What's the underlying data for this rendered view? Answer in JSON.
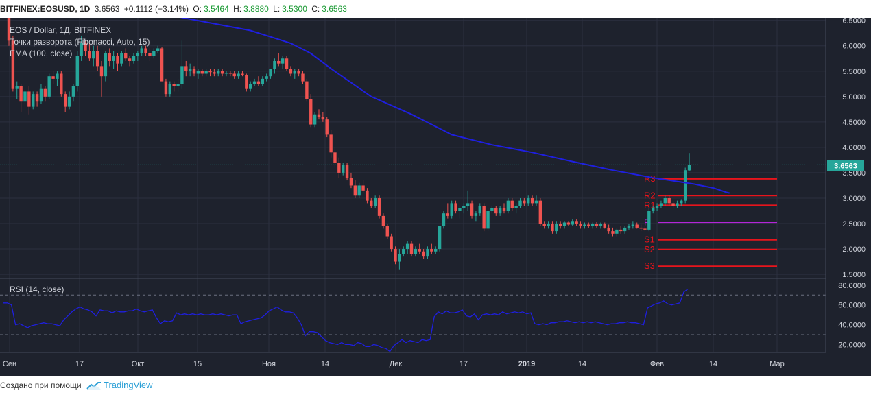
{
  "header": {
    "symbol": "BITFINEX:EOSUSD, 1D",
    "last": "3.6563",
    "change": "+0.1112 (+3.14%)",
    "o_label": "O:",
    "o": "3.5464",
    "h_label": "H:",
    "h": "3.8880",
    "l_label": "L:",
    "l": "3.5300",
    "c_label": "C:",
    "c": "3.6563"
  },
  "legend": {
    "line1": "EOS / Dollar, 1Д, BITFINEX",
    "line2": "Точки разворота (Fibonacci, Auto, 15)",
    "line3": "EMA (100, close)",
    "rsi": "RSI (14, close)"
  },
  "price_label": "3.6563",
  "footer": {
    "made_with": "Создано при помощи",
    "brand": "TradingView"
  },
  "colors": {
    "up": "#26a69a",
    "down": "#ef5350",
    "ema": "#1f1fe0",
    "pivot_r": "#e8141c",
    "pivot_p": "#b425d8",
    "rsi": "#1f1fe0",
    "bg": "#1e222d",
    "grid": "#2c3040",
    "last_line": "#26a69a"
  },
  "chart_data": [
    {
      "type": "candlestick",
      "title": "EOS / Dollar, 1Д, BITFINEX",
      "x_ticks": [
        "Сен",
        "17",
        "Окт",
        "15",
        "Ноя",
        "14",
        "Дек",
        "17",
        "2019",
        "14",
        "Фев",
        "14",
        "Мар"
      ],
      "y_ticks": [
        "1.5000",
        "2.0000",
        "2.5000",
        "3.0000",
        "3.5000",
        "4.0000",
        "4.5000",
        "5.0000",
        "5.5000",
        "6.0000",
        "6.5000"
      ],
      "ylim": [
        1.5,
        6.5
      ],
      "candles": [
        [
          6.6,
          6.62,
          6.0,
          6.1
        ],
        [
          6.1,
          6.2,
          5.1,
          5.15
        ],
        [
          5.15,
          5.3,
          4.95,
          5.2
        ],
        [
          5.2,
          5.25,
          4.7,
          4.9
        ],
        [
          4.9,
          5.15,
          4.85,
          5.1
        ],
        [
          5.1,
          5.2,
          4.65,
          4.8
        ],
        [
          4.8,
          5.1,
          4.75,
          5.05
        ],
        [
          5.05,
          5.1,
          4.8,
          4.9
        ],
        [
          4.9,
          5.25,
          4.85,
          5.15
        ],
        [
          5.15,
          5.2,
          4.9,
          5.0
        ],
        [
          5.0,
          5.45,
          4.95,
          5.4
        ],
        [
          5.4,
          5.5,
          5.25,
          5.35
        ],
        [
          5.35,
          5.5,
          5.2,
          5.45
        ],
        [
          5.45,
          5.5,
          5.0,
          5.05
        ],
        [
          5.05,
          5.1,
          4.7,
          4.8
        ],
        [
          4.8,
          5.1,
          4.75,
          5.0
        ],
        [
          5.0,
          5.25,
          4.9,
          5.2
        ],
        [
          5.2,
          5.9,
          5.1,
          5.8
        ],
        [
          5.8,
          6.2,
          5.7,
          6.05
        ],
        [
          6.05,
          6.1,
          5.8,
          5.9
        ],
        [
          5.9,
          6.05,
          5.7,
          5.75
        ],
        [
          5.75,
          6.0,
          5.6,
          5.9
        ],
        [
          5.9,
          6.0,
          5.5,
          5.6
        ],
        [
          5.6,
          5.7,
          5.0,
          5.4
        ],
        [
          5.4,
          5.9,
          5.3,
          5.85
        ],
        [
          5.85,
          5.95,
          5.6,
          5.7
        ],
        [
          5.7,
          5.9,
          5.55,
          5.8
        ],
        [
          5.8,
          5.85,
          5.5,
          5.65
        ],
        [
          5.65,
          5.9,
          5.6,
          5.85
        ],
        [
          5.85,
          5.95,
          5.7,
          5.75
        ],
        [
          5.75,
          5.8,
          5.6,
          5.7
        ],
        [
          5.7,
          5.85,
          5.65,
          5.8
        ],
        [
          5.8,
          5.9,
          5.7,
          5.85
        ],
        [
          5.85,
          6.0,
          5.8,
          5.95
        ],
        [
          5.95,
          6.0,
          5.8,
          5.85
        ],
        [
          5.85,
          5.95,
          5.7,
          5.8
        ],
        [
          5.8,
          5.95,
          5.75,
          5.9
        ],
        [
          5.9,
          6.0,
          5.85,
          5.95
        ],
        [
          5.95,
          5.98,
          5.3,
          5.3
        ],
        [
          5.3,
          5.35,
          5.0,
          5.05
        ],
        [
          5.05,
          5.3,
          5.0,
          5.25
        ],
        [
          5.25,
          5.3,
          5.1,
          5.2
        ],
        [
          5.2,
          5.35,
          5.1,
          5.25
        ],
        [
          5.25,
          6.1,
          5.15,
          5.6
        ],
        [
          5.6,
          5.7,
          5.4,
          5.5
        ],
        [
          5.5,
          5.65,
          5.4,
          5.55
        ],
        [
          5.55,
          5.6,
          5.4,
          5.45
        ],
        [
          5.45,
          5.55,
          5.35,
          5.5
        ],
        [
          5.5,
          5.55,
          5.4,
          5.45
        ],
        [
          5.45,
          5.55,
          5.4,
          5.5
        ],
        [
          5.5,
          5.55,
          5.4,
          5.48
        ],
        [
          5.48,
          5.55,
          5.4,
          5.45
        ],
        [
          5.45,
          5.55,
          5.4,
          5.5
        ],
        [
          5.5,
          5.55,
          5.4,
          5.45
        ],
        [
          5.45,
          5.5,
          5.4,
          5.47
        ],
        [
          5.47,
          5.5,
          5.4,
          5.45
        ],
        [
          5.45,
          5.5,
          5.35,
          5.4
        ],
        [
          5.4,
          5.5,
          5.35,
          5.45
        ],
        [
          5.45,
          5.5,
          5.4,
          5.42
        ],
        [
          5.42,
          5.45,
          5.1,
          5.15
        ],
        [
          5.15,
          5.3,
          5.1,
          5.25
        ],
        [
          5.25,
          5.35,
          5.2,
          5.3
        ],
        [
          5.3,
          5.4,
          5.2,
          5.25
        ],
        [
          5.25,
          5.4,
          5.2,
          5.35
        ],
        [
          5.35,
          5.45,
          5.3,
          5.4
        ],
        [
          5.4,
          5.55,
          5.35,
          5.55
        ],
        [
          5.55,
          5.75,
          5.45,
          5.7
        ],
        [
          5.7,
          5.85,
          5.6,
          5.65
        ],
        [
          5.65,
          5.8,
          5.55,
          5.75
        ],
        [
          5.75,
          5.8,
          5.5,
          5.55
        ],
        [
          5.55,
          5.6,
          5.4,
          5.45
        ],
        [
          5.45,
          5.55,
          5.35,
          5.5
        ],
        [
          5.5,
          5.55,
          5.4,
          5.45
        ],
        [
          5.45,
          5.5,
          5.25,
          5.3
        ],
        [
          5.3,
          5.35,
          4.9,
          4.95
        ],
        [
          4.95,
          5.05,
          4.4,
          4.45
        ],
        [
          4.45,
          4.7,
          4.4,
          4.65
        ],
        [
          4.65,
          4.75,
          4.55,
          4.6
        ],
        [
          4.6,
          4.7,
          4.5,
          4.55
        ],
        [
          4.55,
          4.6,
          4.2,
          4.25
        ],
        [
          4.25,
          4.35,
          3.8,
          3.9
        ],
        [
          3.9,
          4.0,
          3.6,
          3.7
        ],
        [
          3.7,
          3.8,
          3.4,
          3.5
        ],
        [
          3.5,
          3.7,
          3.45,
          3.65
        ],
        [
          3.65,
          3.7,
          3.35,
          3.4
        ],
        [
          3.4,
          3.5,
          3.2,
          3.25
        ],
        [
          3.25,
          3.35,
          3.0,
          3.05
        ],
        [
          3.05,
          3.3,
          3.0,
          3.25
        ],
        [
          3.25,
          3.35,
          3.1,
          3.15
        ],
        [
          3.15,
          3.2,
          2.9,
          2.95
        ],
        [
          2.95,
          3.0,
          2.8,
          2.85
        ],
        [
          2.85,
          3.05,
          2.8,
          3.0
        ],
        [
          3.0,
          3.05,
          2.6,
          2.65
        ],
        [
          2.65,
          2.7,
          2.4,
          2.45
        ],
        [
          2.45,
          2.5,
          2.2,
          2.25
        ],
        [
          2.25,
          2.3,
          1.95,
          2.0
        ],
        [
          2.0,
          2.05,
          1.7,
          1.75
        ],
        [
          1.75,
          2.0,
          1.6,
          1.9
        ],
        [
          1.9,
          2.05,
          1.85,
          2.0
        ],
        [
          2.0,
          2.15,
          1.9,
          2.1
        ],
        [
          2.1,
          2.15,
          1.85,
          1.9
        ],
        [
          1.9,
          2.05,
          1.85,
          2.0
        ],
        [
          2.0,
          2.1,
          1.9,
          1.95
        ],
        [
          1.95,
          2.0,
          1.8,
          1.85
        ],
        [
          1.85,
          2.05,
          1.8,
          2.0
        ],
        [
          2.0,
          2.1,
          1.9,
          1.95
        ],
        [
          1.95,
          2.05,
          1.9,
          2.0
        ],
        [
          2.0,
          2.45,
          1.95,
          2.45
        ],
        [
          2.45,
          2.75,
          2.4,
          2.7
        ],
        [
          2.7,
          2.9,
          2.6,
          2.65
        ],
        [
          2.65,
          2.95,
          2.6,
          2.9
        ],
        [
          2.9,
          2.95,
          2.7,
          2.75
        ],
        [
          2.75,
          2.85,
          2.6,
          2.8
        ],
        [
          2.8,
          2.9,
          2.7,
          2.85
        ],
        [
          2.85,
          3.15,
          2.75,
          2.9
        ],
        [
          2.9,
          2.95,
          2.6,
          2.65
        ],
        [
          2.65,
          2.75,
          2.55,
          2.7
        ],
        [
          2.7,
          2.9,
          2.65,
          2.85
        ],
        [
          2.85,
          2.9,
          2.35,
          2.4
        ],
        [
          2.4,
          2.8,
          2.35,
          2.75
        ],
        [
          2.75,
          2.85,
          2.7,
          2.8
        ],
        [
          2.8,
          2.85,
          2.65,
          2.7
        ],
        [
          2.7,
          2.85,
          2.65,
          2.8
        ],
        [
          2.8,
          2.9,
          2.7,
          2.75
        ],
        [
          2.75,
          3.0,
          2.7,
          2.95
        ],
        [
          2.95,
          3.0,
          2.75,
          2.8
        ],
        [
          2.8,
          2.9,
          2.7,
          2.85
        ],
        [
          2.85,
          3.0,
          2.8,
          2.95
        ],
        [
          2.95,
          3.0,
          2.85,
          2.9
        ],
        [
          2.9,
          3.05,
          2.85,
          3.0
        ],
        [
          3.0,
          3.05,
          2.85,
          2.9
        ],
        [
          2.9,
          3.05,
          2.85,
          2.95
        ],
        [
          2.95,
          3.0,
          2.45,
          2.5
        ],
        [
          2.5,
          2.55,
          2.4,
          2.45
        ],
        [
          2.45,
          2.55,
          2.4,
          2.5
        ],
        [
          2.5,
          2.55,
          2.3,
          2.35
        ],
        [
          2.35,
          2.55,
          2.3,
          2.5
        ],
        [
          2.5,
          2.55,
          2.4,
          2.45
        ],
        [
          2.45,
          2.55,
          2.4,
          2.52
        ],
        [
          2.52,
          2.55,
          2.45,
          2.48
        ],
        [
          2.48,
          2.58,
          2.45,
          2.55
        ],
        [
          2.55,
          2.58,
          2.45,
          2.5
        ],
        [
          2.5,
          2.55,
          2.4,
          2.45
        ],
        [
          2.45,
          2.52,
          2.4,
          2.48
        ],
        [
          2.48,
          2.52,
          2.42,
          2.45
        ],
        [
          2.45,
          2.52,
          2.4,
          2.5
        ],
        [
          2.5,
          2.53,
          2.42,
          2.45
        ],
        [
          2.45,
          2.52,
          2.4,
          2.5
        ],
        [
          2.5,
          2.52,
          2.4,
          2.42
        ],
        [
          2.42,
          2.48,
          2.3,
          2.35
        ],
        [
          2.35,
          2.42,
          2.25,
          2.3
        ],
        [
          2.3,
          2.4,
          2.25,
          2.38
        ],
        [
          2.38,
          2.45,
          2.3,
          2.35
        ],
        [
          2.35,
          2.45,
          2.3,
          2.42
        ],
        [
          2.42,
          2.5,
          2.38,
          2.45
        ],
        [
          2.45,
          2.55,
          2.4,
          2.48
        ],
        [
          2.48,
          2.52,
          2.4,
          2.42
        ],
        [
          2.42,
          2.48,
          2.35,
          2.4
        ],
        [
          2.4,
          2.45,
          2.35,
          2.38
        ],
        [
          2.38,
          2.8,
          2.35,
          2.75
        ],
        [
          2.75,
          2.85,
          2.7,
          2.8
        ],
        [
          2.8,
          2.9,
          2.75,
          2.85
        ],
        [
          2.85,
          2.95,
          2.8,
          2.9
        ],
        [
          2.9,
          3.05,
          2.85,
          3.0
        ],
        [
          3.0,
          3.05,
          2.85,
          2.9
        ],
        [
          2.9,
          2.95,
          2.8,
          2.85
        ],
        [
          2.85,
          2.95,
          2.8,
          2.9
        ],
        [
          2.9,
          2.98,
          2.85,
          2.95
        ],
        [
          2.95,
          3.6,
          2.9,
          3.55
        ],
        [
          3.5464,
          3.888,
          3.53,
          3.6563
        ]
      ],
      "last_price": 3.6563,
      "ema": {
        "name": "EMA (100, close)",
        "points": [
          [
            0,
            7.05
          ],
          [
            20,
            6.85
          ],
          [
            40,
            6.6
          ],
          [
            60,
            6.3
          ],
          [
            70,
            6.05
          ],
          [
            75,
            5.85
          ],
          [
            80,
            5.55
          ],
          [
            90,
            5.0
          ],
          [
            100,
            4.65
          ],
          [
            110,
            4.25
          ],
          [
            120,
            4.05
          ],
          [
            130,
            3.9
          ],
          [
            140,
            3.72
          ],
          [
            150,
            3.55
          ],
          [
            160,
            3.4
          ],
          [
            170,
            3.28
          ],
          [
            175,
            3.2
          ],
          [
            178,
            3.12
          ],
          [
            179,
            3.1
          ]
        ]
      },
      "pivots": {
        "R3": 3.38,
        "R2": 3.05,
        "R1": 2.86,
        "P": 2.52,
        "S1": 2.18,
        "S2": 1.99,
        "S3": 1.66
      }
    },
    {
      "type": "line",
      "title": "RSI (14, close)",
      "y_ticks": [
        "20.0000",
        "40.0000",
        "60.0000",
        "80.0000"
      ],
      "ylim": [
        12,
        82
      ],
      "bands": [
        30,
        70
      ],
      "values": [
        62,
        62,
        60,
        40,
        41,
        39,
        37,
        39,
        40,
        41,
        42,
        41,
        41,
        40,
        39,
        45,
        49,
        53,
        56,
        58,
        56,
        55,
        53,
        49,
        55,
        54,
        54,
        52,
        54,
        53,
        53,
        54,
        54,
        56,
        54,
        53,
        54,
        55,
        47,
        41,
        44,
        43,
        44,
        52,
        50,
        51,
        50,
        51,
        50,
        51,
        50,
        50,
        51,
        50,
        51,
        50,
        49,
        50,
        50,
        41,
        43,
        44,
        45,
        46,
        47,
        50,
        54,
        56,
        58,
        55,
        53,
        53,
        52,
        47,
        40,
        29,
        33,
        33,
        32,
        28,
        24,
        22,
        21,
        20,
        22,
        20,
        20,
        19,
        22,
        21,
        18,
        18,
        20,
        19,
        17,
        16,
        13,
        19,
        22,
        25,
        22,
        24,
        23,
        22,
        25,
        24,
        25,
        48,
        53,
        51,
        54,
        52,
        52,
        53,
        55,
        49,
        48,
        51,
        45,
        50,
        51,
        50,
        51,
        50,
        53,
        51,
        52,
        53,
        52,
        53,
        51,
        52,
        41,
        40,
        41,
        40,
        42,
        42,
        43,
        43,
        44,
        43,
        42,
        43,
        42,
        43,
        42,
        43,
        42,
        41,
        40,
        41,
        41,
        42,
        42,
        43,
        42,
        42,
        41,
        40,
        57,
        59,
        61,
        62,
        64,
        61,
        60,
        61,
        62,
        73,
        76
      ]
    }
  ]
}
